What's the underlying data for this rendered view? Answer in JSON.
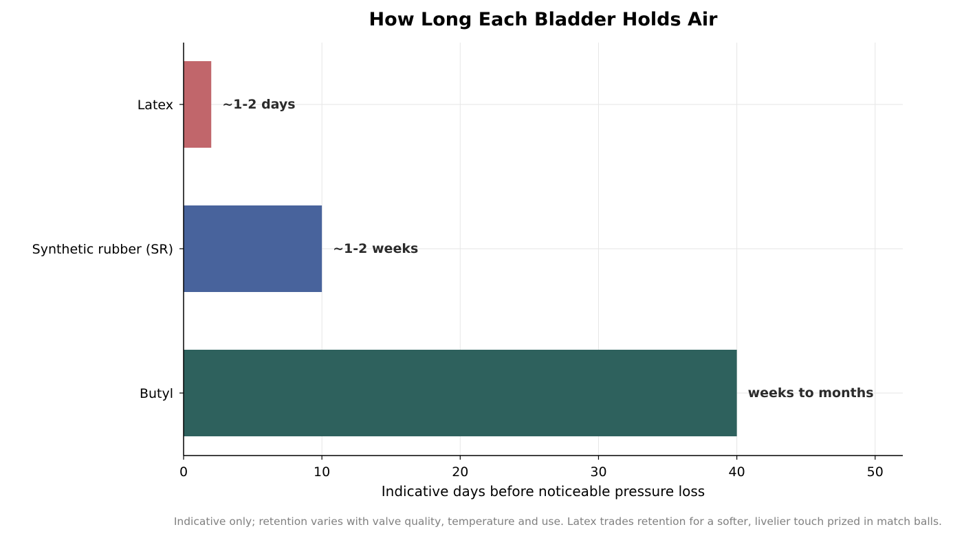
{
  "chart_data": {
    "type": "bar",
    "orientation": "horizontal",
    "title": "How Long Each Bladder Holds Air",
    "xlabel": "Indicative days before noticeable pressure loss",
    "ylabel": "",
    "xlim": [
      0,
      52
    ],
    "xticks": [
      0,
      10,
      20,
      30,
      40,
      50
    ],
    "grid": true,
    "categories": [
      "Latex",
      "Synthetic rubber (SR)",
      "Butyl"
    ],
    "values": [
      2,
      10,
      40
    ],
    "data_labels": [
      "~1-2 days",
      "~1-2 weeks",
      "weeks to months"
    ],
    "colors": [
      "#c1666b",
      "#48639c",
      "#2e615d"
    ],
    "footnote": "Indicative only; retention varies with valve quality, temperature and use. Latex trades retention for a softer, livelier touch prized in match balls."
  }
}
